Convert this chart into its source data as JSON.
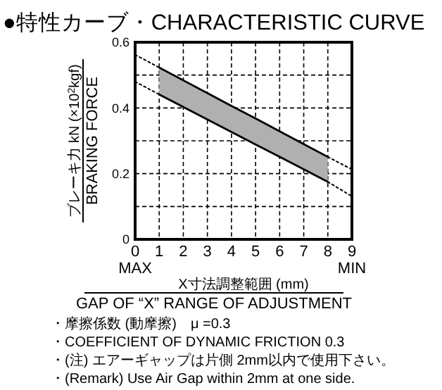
{
  "chart_data": {
    "type": "line",
    "title": "●特性カーブ・CHARACTERISTIC CURVE",
    "xlabel": "X寸法調整範囲 (mm)\nGAP OF “X” RANGE OF ADJUSTMENT",
    "ylabel": "ブレーキ力 kN (×10$^{2}$kgf)\nBRAKING FORCE",
    "xlim": [
      0,
      9
    ],
    "ylim": [
      0,
      0.6
    ],
    "xticks": [
      {
        "value": 0,
        "label": "0\nMAX"
      },
      1,
      2,
      3,
      4,
      5,
      6,
      7,
      {
        "value": 8,
        "label": "8"
      },
      {
        "value": 9,
        "label": "9\nMIN"
      }
    ],
    "yticks": [
      0,
      {
        "value": 0.1,
        "label": null
      },
      0.2,
      {
        "value": 0.3,
        "label": null
      },
      0.4,
      {
        "value": 0.5,
        "label": null
      },
      0.6
    ],
    "grid": true,
    "series": [
      {
        "x": [
          1,
          2,
          3,
          4,
          5,
          6,
          7,
          8
        ],
        "values": [
          0.523,
          0.484,
          0.445,
          0.406,
          0.368,
          0.329,
          0.29,
          0.251
        ],
        "lower": [
          0.441,
          0.403,
          0.365,
          0.327,
          0.289,
          0.251,
          0.213,
          0.175
        ],
        "upper": [
          0.523,
          0.484,
          0.445,
          0.406,
          0.368,
          0.329,
          0.29,
          0.251
        ],
        "color": "#000000",
        "line_style": "solid"
      },
      {
        "x": [
          1,
          2,
          3,
          4,
          5,
          6,
          7,
          8
        ],
        "values": [
          0.441,
          0.403,
          0.365,
          0.327,
          0.289,
          0.251,
          0.213,
          0.175
        ],
        "color": "#000000",
        "line_style": "solid"
      },
      {
        "x": [
          0,
          1
        ],
        "values": [
          0.562,
          0.523
        ],
        "color": "#000000",
        "line_style": "dotted"
      },
      {
        "x": [
          8,
          9
        ],
        "values": [
          0.251,
          0.213
        ],
        "color": "#000000",
        "line_style": "dotted"
      },
      {
        "x": [
          0,
          1
        ],
        "values": [
          0.48,
          0.441
        ],
        "color": "#000000",
        "line_style": "dotted"
      },
      {
        "x": [
          8,
          9
        ],
        "values": [
          0.175,
          0.131
        ],
        "color": "#000000",
        "line_style": "dotted"
      }
    ],
    "annotations": [
      "・摩擦係数 (動摩擦)　μ =0.3",
      "・COEFFICIENT OF DYNAMIC FRICTION 0.3",
      "・(注) エアーギャップは片側 2mm以内で使用下さい。",
      "・(Remark) Use Air Gap within 2mm at one side."
    ]
  }
}
